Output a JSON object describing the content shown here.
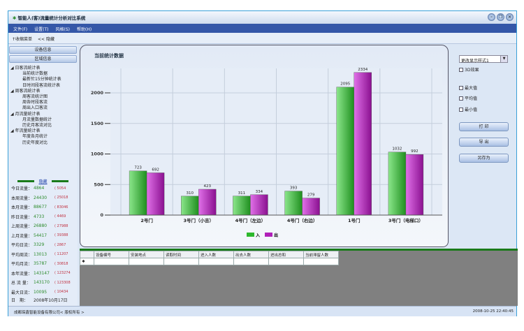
{
  "window": {
    "title": "智能人(客)流量统计分析对比系统"
  },
  "menu": [
    "文件(F)",
    "设置(T)",
    "风格(S)",
    "帮助(H)"
  ],
  "toolbar": {
    "collapse": "↑收缩菜单",
    "hide": "<< 隐藏"
  },
  "left": {
    "buttons": [
      "设备信息",
      "区域信息"
    ],
    "tree": [
      {
        "label": "日客流统计表",
        "children": [
          "当前统计数据",
          "最新忙15分钟统计表",
          "日时间段客流统计表"
        ]
      },
      {
        "label": "周客流统计表",
        "children": [
          "周客流统计图",
          "周各时段客流",
          "周出入口客流"
        ]
      },
      {
        "label": "月流量统计表",
        "children": [
          "月流量数据统计",
          "历史月客流对比"
        ]
      },
      {
        "label": "年流量统计表",
        "children": [
          "年度各月统计",
          "历史年度对比"
        ]
      }
    ],
    "stats_header": "隐藏",
    "stats": [
      {
        "label": "今日流量：",
        "in": "4864",
        "out": "5054"
      },
      {
        "label": "本周流量：",
        "in": "24430",
        "out": "25018"
      },
      {
        "label": "本月流量：",
        "in": "88677",
        "out": "83046"
      },
      {
        "label": "昨日流量：",
        "in": "4733",
        "out": "4469"
      },
      {
        "label": "上周流量：",
        "in": "26880",
        "out": "27988"
      },
      {
        "label": "上月流量：",
        "in": "54417",
        "out": "39388"
      },
      {
        "label": "平均日流：",
        "in": "3329",
        "out": "2867"
      },
      {
        "label": "平均周流：",
        "in": "13013",
        "out": "11207"
      },
      {
        "label": "平均月流：",
        "in": "35787",
        "out": "30818"
      },
      {
        "label": "本年流量：",
        "in": "143147",
        "out": "123274"
      },
      {
        "label": "总 流 量：",
        "in": "143170",
        "out": "123308"
      },
      {
        "label": "最大日流：",
        "in": "10095",
        "out": "10434"
      }
    ],
    "date_label": "日　期：",
    "date_value": "2008年10月17日"
  },
  "chart_title": "当前统计数据",
  "chart_data": {
    "type": "bar",
    "title": "当前统计数据",
    "categories": [
      "2号门",
      "3号门（小吉）",
      "4号门（左边）",
      "4号门（右边）",
      "1号门",
      "3号门（电梯口）"
    ],
    "series": [
      {
        "name": "入",
        "color": "#2db82d",
        "values": [
          723,
          310,
          311,
          393,
          2095,
          1032
        ]
      },
      {
        "name": "出",
        "color": "#b020b8",
        "values": [
          692,
          423,
          334,
          279,
          2334,
          992
        ]
      }
    ],
    "yticks": [
      0,
      500,
      1000,
      1500,
      2000
    ],
    "ylim": [
      0,
      2400
    ],
    "grid": true,
    "legend": "bottom"
  },
  "right": {
    "style_select": "更改显示样式1",
    "checks": [
      "3D效果",
      "最大值",
      "平均值",
      "最小值"
    ],
    "buttons": [
      "打 印",
      "导 出",
      "另存为"
    ]
  },
  "table": {
    "columns": [
      "设备编号",
      "安装地点",
      "读取时间",
      "进入人数",
      "出去人数",
      "进出总和",
      "当前滞留人数"
    ],
    "new_row_marker": "✱"
  },
  "footer": {
    "copyright": "成都琛鑫智能设备有限公司< 版权所有 >",
    "time": "2008-10-25 22:40:45"
  }
}
